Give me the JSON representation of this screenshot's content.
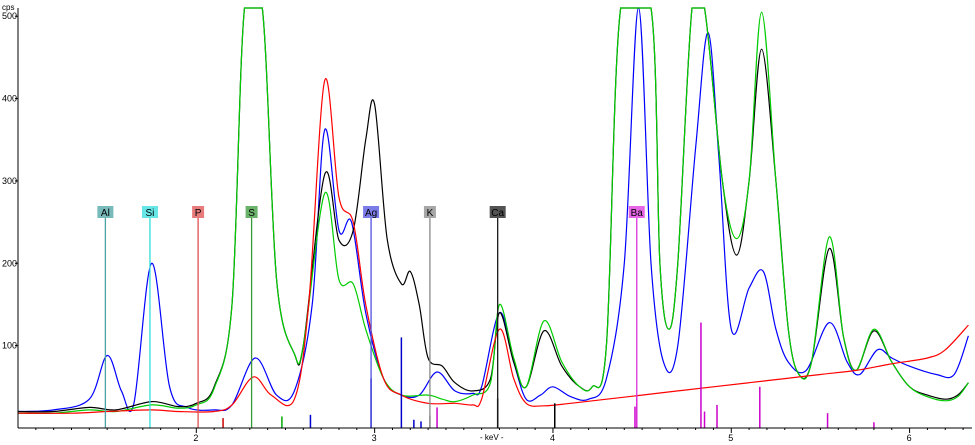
{
  "chart_data": {
    "type": "line",
    "title": "",
    "ylabel": "cps",
    "xlabel": "- keV -",
    "xlim": [
      1.0,
      6.35
    ],
    "ylim": [
      0,
      510
    ],
    "x_ticks": [
      "2",
      "3",
      "4",
      "5",
      "6"
    ],
    "y_ticks": [
      "100",
      "200",
      "300",
      "400",
      "500"
    ],
    "grid": false,
    "elements": [
      {
        "symbol": "Al",
        "energy": 1.49,
        "color": "#4ba3a3"
      },
      {
        "symbol": "Si",
        "energy": 1.74,
        "color": "#33dddd"
      },
      {
        "symbol": "P",
        "energy": 2.01,
        "color": "#e05050"
      },
      {
        "symbol": "S",
        "energy": 2.31,
        "color": "#3a9a3a"
      },
      {
        "symbol": "Ag",
        "energy": 2.98,
        "color": "#5050e0"
      },
      {
        "symbol": "K",
        "energy": 3.31,
        "color": "#8a8a8a"
      },
      {
        "symbol": "Ca",
        "energy": 3.69,
        "color": "#1a1a1a"
      },
      {
        "symbol": "Ba",
        "energy": 4.47,
        "color": "#dd33dd"
      }
    ],
    "series": [
      {
        "color": "#0000ff",
        "points": [
          [
            1.0,
            20
          ],
          [
            1.2,
            22
          ],
          [
            1.4,
            35
          ],
          [
            1.5,
            88
          ],
          [
            1.58,
            45
          ],
          [
            1.65,
            30
          ],
          [
            1.75,
            200
          ],
          [
            1.85,
            50
          ],
          [
            1.95,
            25
          ],
          [
            2.1,
            22
          ],
          [
            2.2,
            28
          ],
          [
            2.33,
            85
          ],
          [
            2.45,
            40
          ],
          [
            2.55,
            45
          ],
          [
            2.65,
            150
          ],
          [
            2.72,
            362
          ],
          [
            2.8,
            240
          ],
          [
            2.87,
            250
          ],
          [
            2.95,
            140
          ],
          [
            3.05,
            60
          ],
          [
            3.15,
            40
          ],
          [
            3.25,
            40
          ],
          [
            3.35,
            68
          ],
          [
            3.45,
            45
          ],
          [
            3.55,
            42
          ],
          [
            3.6,
            50
          ],
          [
            3.7,
            140
          ],
          [
            3.78,
            80
          ],
          [
            3.85,
            35
          ],
          [
            3.93,
            40
          ],
          [
            4.0,
            50
          ],
          [
            4.1,
            38
          ],
          [
            4.2,
            35
          ],
          [
            4.3,
            60
          ],
          [
            4.4,
            200
          ],
          [
            4.48,
            510
          ],
          [
            4.55,
            200
          ],
          [
            4.62,
            80
          ],
          [
            4.7,
            100
          ],
          [
            4.8,
            340
          ],
          [
            4.87,
            480
          ],
          [
            4.93,
            330
          ],
          [
            5.0,
            120
          ],
          [
            5.1,
            170
          ],
          [
            5.18,
            190
          ],
          [
            5.25,
            120
          ],
          [
            5.32,
            80
          ],
          [
            5.42,
            70
          ],
          [
            5.55,
            128
          ],
          [
            5.65,
            80
          ],
          [
            5.72,
            65
          ],
          [
            5.82,
            95
          ],
          [
            5.9,
            85
          ],
          [
            6.0,
            75
          ],
          [
            6.15,
            65
          ],
          [
            6.25,
            65
          ],
          [
            6.33,
            112
          ]
        ]
      },
      {
        "color": "#000000",
        "points": [
          [
            1.0,
            20
          ],
          [
            1.2,
            20
          ],
          [
            1.4,
            25
          ],
          [
            1.55,
            22
          ],
          [
            1.75,
            32
          ],
          [
            1.9,
            26
          ],
          [
            2.0,
            30
          ],
          [
            2.1,
            50
          ],
          [
            2.2,
            150
          ],
          [
            2.27,
            510
          ],
          [
            2.37,
            510
          ],
          [
            2.45,
            180
          ],
          [
            2.55,
            90
          ],
          [
            2.6,
            100
          ],
          [
            2.72,
            308
          ],
          [
            2.8,
            228
          ],
          [
            2.88,
            240
          ],
          [
            2.95,
            350
          ],
          [
            3.0,
            393
          ],
          [
            3.07,
            230
          ],
          [
            3.15,
            175
          ],
          [
            3.2,
            190
          ],
          [
            3.25,
            150
          ],
          [
            3.3,
            85
          ],
          [
            3.38,
            75
          ],
          [
            3.45,
            55
          ],
          [
            3.55,
            45
          ],
          [
            3.65,
            60
          ],
          [
            3.7,
            140
          ],
          [
            3.78,
            80
          ],
          [
            3.85,
            50
          ],
          [
            3.95,
            118
          ],
          [
            4.05,
            75
          ],
          [
            4.15,
            50
          ],
          [
            4.22,
            50
          ],
          [
            4.3,
            100
          ],
          [
            4.38,
            510
          ],
          [
            4.55,
            510
          ],
          [
            4.6,
            200
          ],
          [
            4.65,
            120
          ],
          [
            4.7,
            200
          ],
          [
            4.78,
            510
          ],
          [
            4.85,
            510
          ],
          [
            4.95,
            300
          ],
          [
            5.03,
            210
          ],
          [
            5.1,
            300
          ],
          [
            5.17,
            460
          ],
          [
            5.25,
            300
          ],
          [
            5.32,
            120
          ],
          [
            5.38,
            65
          ],
          [
            5.45,
            80
          ],
          [
            5.55,
            218
          ],
          [
            5.63,
            110
          ],
          [
            5.7,
            70
          ],
          [
            5.8,
            118
          ],
          [
            5.9,
            80
          ],
          [
            6.0,
            50
          ],
          [
            6.1,
            40
          ],
          [
            6.2,
            35
          ],
          [
            6.27,
            40
          ],
          [
            6.33,
            55
          ]
        ]
      },
      {
        "color": "#00cc00",
        "points": [
          [
            1.0,
            18
          ],
          [
            1.2,
            18
          ],
          [
            1.4,
            22
          ],
          [
            1.55,
            20
          ],
          [
            1.75,
            28
          ],
          [
            1.9,
            24
          ],
          [
            2.0,
            28
          ],
          [
            2.1,
            48
          ],
          [
            2.2,
            150
          ],
          [
            2.27,
            510
          ],
          [
            2.37,
            510
          ],
          [
            2.45,
            180
          ],
          [
            2.55,
            90
          ],
          [
            2.6,
            100
          ],
          [
            2.72,
            285
          ],
          [
            2.8,
            180
          ],
          [
            2.88,
            175
          ],
          [
            2.95,
            120
          ],
          [
            3.05,
            60
          ],
          [
            3.15,
            40
          ],
          [
            3.3,
            40
          ],
          [
            3.38,
            35
          ],
          [
            3.45,
            32
          ],
          [
            3.55,
            40
          ],
          [
            3.65,
            55
          ],
          [
            3.7,
            150
          ],
          [
            3.78,
            85
          ],
          [
            3.85,
            50
          ],
          [
            3.95,
            130
          ],
          [
            4.05,
            80
          ],
          [
            4.15,
            50
          ],
          [
            4.22,
            50
          ],
          [
            4.3,
            100
          ],
          [
            4.38,
            510
          ],
          [
            4.55,
            510
          ],
          [
            4.6,
            200
          ],
          [
            4.65,
            120
          ],
          [
            4.7,
            200
          ],
          [
            4.78,
            510
          ],
          [
            4.85,
            510
          ],
          [
            4.95,
            300
          ],
          [
            5.03,
            230
          ],
          [
            5.1,
            300
          ],
          [
            5.17,
            505
          ],
          [
            5.25,
            300
          ],
          [
            5.32,
            120
          ],
          [
            5.38,
            65
          ],
          [
            5.45,
            80
          ],
          [
            5.55,
            232
          ],
          [
            5.63,
            110
          ],
          [
            5.7,
            70
          ],
          [
            5.8,
            120
          ],
          [
            5.9,
            80
          ],
          [
            6.0,
            50
          ],
          [
            6.1,
            38
          ],
          [
            6.2,
            33
          ],
          [
            6.27,
            38
          ],
          [
            6.33,
            55
          ]
        ]
      },
      {
        "color": "#ff0000",
        "points": [
          [
            1.0,
            18
          ],
          [
            1.3,
            18
          ],
          [
            1.5,
            20
          ],
          [
            1.75,
            22
          ],
          [
            1.9,
            20
          ],
          [
            2.1,
            20
          ],
          [
            2.2,
            28
          ],
          [
            2.32,
            62
          ],
          [
            2.42,
            40
          ],
          [
            2.55,
            35
          ],
          [
            2.63,
            150
          ],
          [
            2.72,
            422
          ],
          [
            2.8,
            280
          ],
          [
            2.88,
            250
          ],
          [
            2.95,
            150
          ],
          [
            3.05,
            60
          ],
          [
            3.15,
            40
          ],
          [
            3.3,
            30
          ],
          [
            3.45,
            30
          ],
          [
            3.55,
            28
          ],
          [
            3.6,
            35
          ],
          [
            3.7,
            120
          ],
          [
            3.78,
            60
          ],
          [
            3.85,
            30
          ],
          [
            3.95,
            27
          ],
          [
            4.1,
            30
          ],
          [
            4.3,
            35
          ],
          [
            4.5,
            40
          ],
          [
            4.7,
            45
          ],
          [
            4.9,
            50
          ],
          [
            5.1,
            55
          ],
          [
            5.3,
            60
          ],
          [
            5.5,
            65
          ],
          [
            5.7,
            70
          ],
          [
            5.9,
            78
          ],
          [
            6.1,
            85
          ],
          [
            6.2,
            95
          ],
          [
            6.33,
            125
          ]
        ]
      }
    ],
    "stick_lines": [
      {
        "energy": 2.15,
        "height": 12,
        "color": "#cc0000"
      },
      {
        "energy": 2.48,
        "height": 14,
        "color": "#00aa00"
      },
      {
        "energy": 2.64,
        "height": 16,
        "color": "#0000cc"
      },
      {
        "energy": 2.98,
        "height": 60,
        "color": "#0000cc"
      },
      {
        "energy": 3.15,
        "height": 110,
        "color": "#0000cc"
      },
      {
        "energy": 3.22,
        "height": 10,
        "color": "#0000cc"
      },
      {
        "energy": 3.26,
        "height": 8,
        "color": "#0000cc"
      },
      {
        "energy": 3.31,
        "height": 15,
        "color": "#888888"
      },
      {
        "energy": 3.35,
        "height": 25,
        "color": "#cc00cc"
      },
      {
        "energy": 3.69,
        "height": 36,
        "color": "#000000"
      },
      {
        "energy": 4.01,
        "height": 30,
        "color": "#000000"
      },
      {
        "energy": 4.46,
        "height": 26,
        "color": "#cc00cc"
      },
      {
        "energy": 4.47,
        "height": 40,
        "color": "#cc00cc"
      },
      {
        "energy": 4.83,
        "height": 128,
        "color": "#cc00cc"
      },
      {
        "energy": 4.85,
        "height": 20,
        "color": "#cc00cc"
      },
      {
        "energy": 4.92,
        "height": 28,
        "color": "#cc00cc"
      },
      {
        "energy": 5.16,
        "height": 50,
        "color": "#cc00cc"
      },
      {
        "energy": 5.54,
        "height": 18,
        "color": "#cc00cc"
      },
      {
        "energy": 5.8,
        "height": 7,
        "color": "#cc00cc"
      }
    ]
  }
}
